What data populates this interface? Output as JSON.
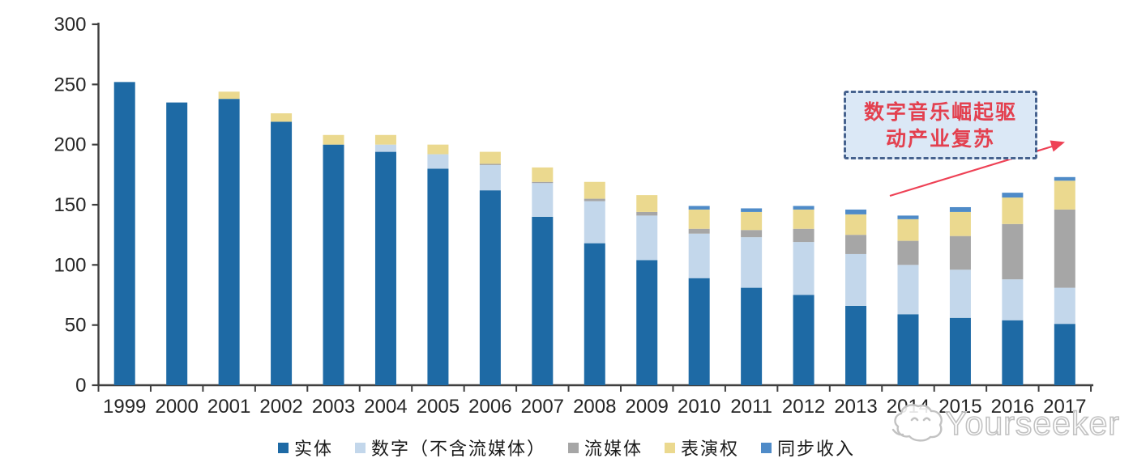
{
  "chart_data": {
    "type": "bar",
    "stacked": true,
    "title": "",
    "xlabel": "",
    "ylabel": "",
    "ylim": [
      0,
      300
    ],
    "y_ticks": [
      0,
      50,
      100,
      150,
      200,
      250,
      300
    ],
    "grid": false,
    "legend_position": "bottom",
    "axis_color": "#3F3F3F",
    "label_color": "#262626",
    "categories": [
      "1999",
      "2000",
      "2001",
      "2002",
      "2003",
      "2004",
      "2005",
      "2006",
      "2007",
      "2008",
      "2009",
      "2010",
      "2011",
      "2012",
      "2013",
      "2014",
      "2015",
      "2016",
      "2017"
    ],
    "series": [
      {
        "key": "physical",
        "name": "实体",
        "color": "#1E6AA5",
        "values": [
          252,
          235,
          238,
          219,
          200,
          194,
          180,
          162,
          140,
          118,
          104,
          89,
          81,
          75,
          66,
          59,
          56,
          54,
          51
        ]
      },
      {
        "key": "digital-excl-streaming",
        "name": "数字（不含流媒体）",
        "color": "#C3D7EB",
        "values": [
          0,
          0,
          0,
          0,
          0,
          6,
          12,
          21,
          28,
          35,
          37,
          37,
          42,
          44,
          43,
          41,
          40,
          34,
          30
        ]
      },
      {
        "key": "streaming",
        "name": "流媒体",
        "color": "#A6A6A6",
        "values": [
          0,
          0,
          0,
          0,
          0,
          0,
          0,
          1,
          1,
          2,
          3,
          4,
          6,
          11,
          16,
          20,
          28,
          46,
          65
        ]
      },
      {
        "key": "performance-rights",
        "name": "表演权",
        "color": "#EBD98F",
        "values": [
          0,
          0,
          6,
          7,
          8,
          8,
          8,
          10,
          12,
          14,
          14,
          16,
          15,
          16,
          17,
          18,
          20,
          22,
          24
        ]
      },
      {
        "key": "sync-revenue",
        "name": "同步收入",
        "color": "#4F8BC8",
        "values": [
          0,
          0,
          0,
          0,
          0,
          0,
          0,
          0,
          0,
          0,
          0,
          3,
          3,
          3,
          4,
          3,
          4,
          4,
          3
        ]
      }
    ]
  },
  "annotation": {
    "line1": "数字音乐崛起驱",
    "line2": "动产业复苏",
    "text_color": "#E3404F",
    "box_fill": "#DBE8F6",
    "border_color": "#46628E",
    "arrow_color": "#EE4155"
  },
  "watermark": {
    "text": "Yourseeker"
  }
}
